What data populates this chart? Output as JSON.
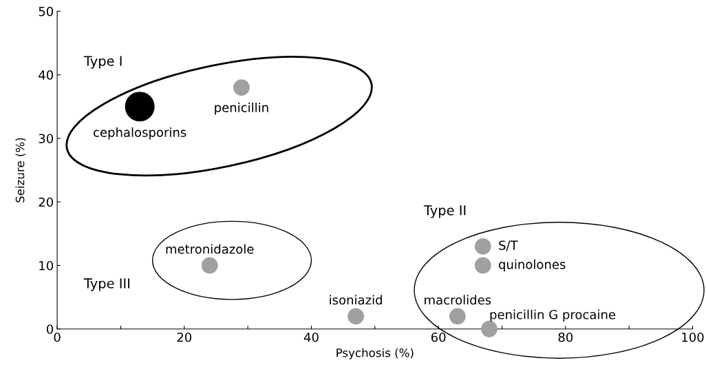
{
  "chart_data": {
    "type": "scatter",
    "xlabel": "Psychosis (%)",
    "ylabel": "Seizure (%)",
    "series": [
      {
        "color": "#000000",
        "x": [
          13
        ],
        "values": [
          35
        ]
      },
      {
        "color": "#a0a0a0",
        "x": [
          29,
          24,
          47,
          67,
          67,
          63,
          68
        ],
        "values": [
          38,
          10,
          2,
          13,
          10,
          2,
          0
        ]
      }
    ],
    "xlim": [
      0,
      100
    ],
    "ylim": [
      0,
      50
    ],
    "xticks": [
      0,
      {
        "value": 10,
        "label": null
      },
      20,
      {
        "value": 30,
        "label": null
      },
      40,
      {
        "value": 50,
        "label": null
      },
      60,
      {
        "value": 70,
        "label": null
      },
      80,
      {
        "value": 90,
        "label": null
      },
      100
    ],
    "yticks": [
      0,
      10,
      20,
      30,
      40,
      50
    ],
    "grid": false,
    "marker": "circle",
    "annotations": [
      {
        "text": "cephalosporins",
        "x": 13,
        "y": 35
      },
      {
        "text": "penicillin",
        "x": 29,
        "y": 38
      },
      {
        "text": "metronidazole",
        "x": 24,
        "y": 10
      },
      {
        "text": "isoniazid",
        "x": 47,
        "y": 2
      },
      {
        "text": "S/T",
        "x": 67,
        "y": 13
      },
      {
        "text": "quinolones",
        "x": 67,
        "y": 10
      },
      {
        "text": "macrolides",
        "x": 63,
        "y": 2
      },
      {
        "text": "penicillin G procaine",
        "x": 68,
        "y": 0
      },
      "Type I",
      "Type II",
      "Type III"
    ]
  }
}
